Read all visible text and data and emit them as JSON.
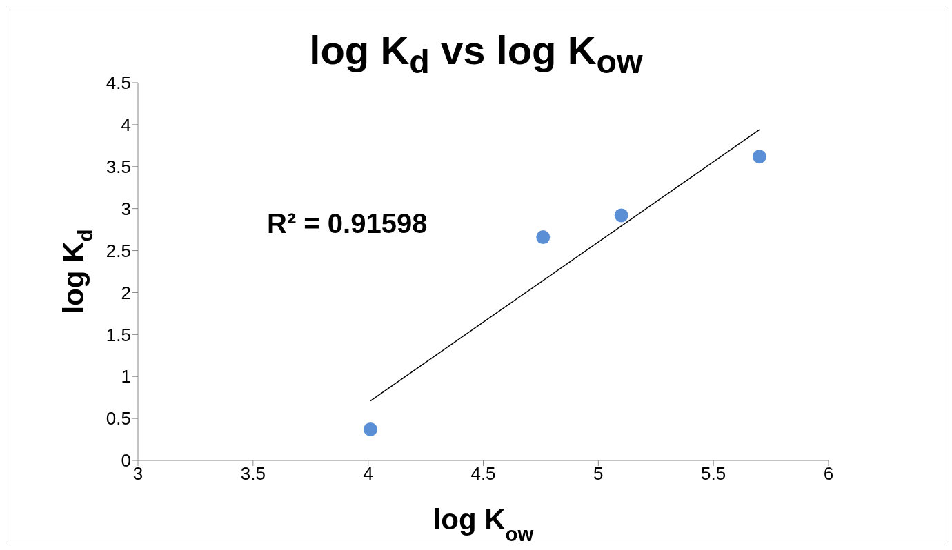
{
  "chart_data": {
    "type": "scatter",
    "title": "log K$_{d}$ vs log K$_{ow}$",
    "xlabel": "log K$_{ow}$",
    "ylabel": "log K$_{d}$",
    "xlim": [
      3,
      6
    ],
    "xticks": [
      3,
      3.5,
      4,
      4.5,
      5,
      5.5,
      6
    ],
    "ylim": [
      0,
      4.5
    ],
    "yticks": [
      0,
      0.5,
      1,
      1.5,
      2,
      2.5,
      3,
      3.5,
      4,
      4.5
    ],
    "legend": false,
    "annotations": [
      "R² = 0.91598"
    ],
    "series": [
      {
        "color": "#5b8fd5",
        "marker": "circle",
        "x": [
          4.01,
          4.76,
          5.1,
          5.7
        ],
        "values": [
          0.37,
          2.66,
          2.92,
          3.62
        ]
      },
      {
        "type": "line",
        "color": "#000000",
        "line_style": "solid",
        "x": [
          4.01,
          5.7
        ],
        "values": [
          0.71,
          3.94
        ]
      }
    ]
  }
}
